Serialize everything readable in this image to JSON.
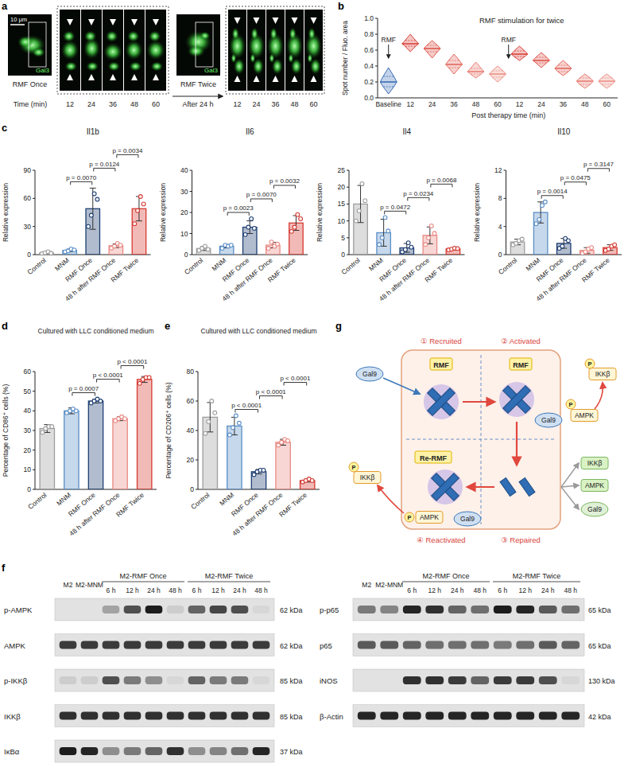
{
  "panel_letters": [
    "a",
    "b",
    "c",
    "d",
    "e",
    "f",
    "g"
  ],
  "panel_a": {
    "scale_bar": "10 μm",
    "stain": "Gal3",
    "conditions": [
      "RMF Once",
      "RMF Twice"
    ],
    "interval": "After 24 h",
    "axis_title": "Time (min)",
    "times": [
      12,
      24,
      36,
      48,
      60
    ]
  },
  "chart_data": [
    {
      "type": "violin",
      "title": "RMF stimulation for twice",
      "y_label": "Spot number / Fluo. area",
      "x_label": "Post therapy time (min)",
      "categories": [
        "Baseline",
        "12",
        "24",
        "36",
        "48",
        "60",
        "12",
        "24",
        "36",
        "48",
        "60"
      ],
      "min": [
        0.05,
        0.58,
        0.5,
        0.3,
        0.25,
        0.2,
        0.47,
        0.38,
        0.28,
        0.12,
        0.12
      ],
      "q1": [
        0.14,
        0.65,
        0.58,
        0.38,
        0.3,
        0.26,
        0.52,
        0.44,
        0.33,
        0.17,
        0.17
      ],
      "median": [
        0.2,
        0.68,
        0.62,
        0.42,
        0.33,
        0.3,
        0.55,
        0.47,
        0.37,
        0.21,
        0.21
      ],
      "q3": [
        0.27,
        0.72,
        0.66,
        0.47,
        0.37,
        0.34,
        0.59,
        0.51,
        0.41,
        0.25,
        0.25
      ],
      "max": [
        0.38,
        0.8,
        0.72,
        0.55,
        0.45,
        0.4,
        0.65,
        0.57,
        0.47,
        0.3,
        0.3
      ],
      "colors": [
        "#3b6db5",
        "#d9433b",
        "#de564c",
        "#e36a5f",
        "#e87f73",
        "#ec9287",
        "#d9433b",
        "#de564c",
        "#e36a5f",
        "#e87f73",
        "#ec9287"
      ],
      "annotations": [
        "RMF",
        "RMF"
      ],
      "ylim": [
        0,
        1
      ],
      "yticks": [
        {
          "value": 0,
          "label": "0.0"
        },
        {
          "value": 0.2,
          "label": "0.2"
        },
        {
          "value": 0.4,
          "label": "0.4"
        },
        {
          "value": 0.6,
          "label": "0.6"
        },
        {
          "value": 0.8,
          "label": "0.8"
        },
        {
          "value": 1,
          "label": "1.0"
        }
      ]
    },
    {
      "type": "bar",
      "title": "Il1b",
      "y_label": "Relative expression",
      "categories": [
        "Control",
        "MNM",
        "RMF Once",
        "48 h after RMF Once",
        "RMF Twice"
      ],
      "values": [
        1.9,
        4.5,
        49,
        9.5,
        49
      ],
      "errors": [
        0.9,
        1.3,
        22,
        2,
        13
      ],
      "points": [
        [
          1,
          2,
          3,
          1.5
        ],
        [
          3,
          4,
          6,
          5
        ],
        [
          30,
          42,
          65,
          59
        ],
        [
          7,
          9,
          12,
          10
        ],
        [
          33,
          47,
          62,
          54
        ]
      ],
      "colors": [
        "#9e9e9e",
        "#5b8fc7",
        "#1f3f73",
        "#e98a84",
        "#d63a32"
      ],
      "ylim": [
        0,
        90
      ],
      "yticks": [
        0,
        30,
        60,
        90
      ],
      "comparisons": [
        {
          "from": 1,
          "to": 2,
          "label": "p = 0.0070"
        },
        {
          "from": 2,
          "to": 3,
          "label": "p = 0.0124"
        },
        {
          "from": 3,
          "to": 4,
          "label": "p = 0.0034"
        }
      ]
    },
    {
      "type": "bar",
      "title": "Il6",
      "y_label": "Relative expression",
      "categories": [
        "Control",
        "MNM",
        "RMF Once",
        "48 h after RMF Once",
        "RMF Twice"
      ],
      "values": [
        2.9,
        4,
        13,
        4.5,
        15
      ],
      "errors": [
        0.9,
        0.8,
        3,
        1.3,
        3.5
      ],
      "points": [
        [
          2,
          3,
          4,
          2.5
        ],
        [
          3,
          4.5,
          4,
          4.5
        ],
        [
          9.5,
          13,
          17,
          12.5
        ],
        [
          3,
          6,
          4,
          5
        ],
        [
          11,
          13,
          19,
          17
        ]
      ],
      "colors": [
        "#9e9e9e",
        "#5b8fc7",
        "#1f3f73",
        "#e98a84",
        "#d63a32"
      ],
      "ylim": [
        0,
        40
      ],
      "yticks": [
        0,
        10,
        20,
        30,
        40
      ],
      "comparisons": [
        {
          "from": 1,
          "to": 2,
          "label": "p = 0.0023"
        },
        {
          "from": 2,
          "to": 3,
          "label": "p = 0.0070"
        },
        {
          "from": 3,
          "to": 4,
          "label": "p = 0.0032"
        }
      ]
    },
    {
      "type": "bar",
      "title": "Il4",
      "y_label": "Relative expression",
      "categories": [
        "Control",
        "MNM",
        "RMF Once",
        "48 h after RMF Once",
        "RMF Twice"
      ],
      "values": [
        15,
        6.5,
        2,
        5.7,
        1.7
      ],
      "errors": [
        5.5,
        4,
        1.3,
        2.5,
        0.3
      ],
      "points": [
        [
          10,
          13,
          21,
          16
        ],
        [
          3,
          5,
          11,
          7
        ],
        [
          0.8,
          1.5,
          3.5,
          2.2
        ],
        [
          3,
          5,
          8.5,
          6.3
        ],
        [
          1.4,
          1.6,
          1.9,
          1.8
        ]
      ],
      "colors": [
        "#9e9e9e",
        "#5b8fc7",
        "#1f3f73",
        "#e98a84",
        "#d63a32"
      ],
      "ylim": [
        0,
        25
      ],
      "yticks": [
        0,
        5,
        10,
        15,
        20,
        25
      ],
      "comparisons": [
        {
          "from": 1,
          "to": 2,
          "label": "p = 0.0472"
        },
        {
          "from": 2,
          "to": 3,
          "label": "p = 0.0234"
        },
        {
          "from": 3,
          "to": 4,
          "label": "p = 0.0068"
        }
      ]
    },
    {
      "type": "bar",
      "title": "Il10",
      "y_label": "Relative expression",
      "categories": [
        "Control",
        "MNM",
        "RMF Once",
        "48 h after RMF Once",
        "RMF Twice"
      ],
      "values": [
        1.8,
        6,
        1.6,
        0.6,
        1
      ],
      "errors": [
        0.4,
        1.5,
        0.7,
        0.4,
        0.4
      ],
      "points": [
        [
          1.4,
          1.6,
          2,
          2.2
        ],
        [
          4.4,
          5,
          7,
          7.5
        ],
        [
          0.9,
          1.2,
          2.3,
          2
        ],
        [
          0.2,
          0.4,
          0.8,
          1
        ],
        [
          0.6,
          0.8,
          1.2,
          1.4
        ]
      ],
      "colors": [
        "#9e9e9e",
        "#5b8fc7",
        "#1f3f73",
        "#e98a84",
        "#d63a32"
      ],
      "ylim": [
        0,
        12
      ],
      "yticks": [
        0,
        4,
        8,
        12
      ],
      "comparisons": [
        {
          "from": 1,
          "to": 2,
          "label": "p = 0.0014"
        },
        {
          "from": 2,
          "to": 3,
          "label": "p = 0.0475"
        },
        {
          "from": 3,
          "to": 4,
          "label": "p = 0.3147"
        }
      ]
    },
    {
      "type": "bar",
      "title": "Cultured with LLC conditioned medium",
      "y_label": "Percentage of CD86⁺ cells (%)",
      "categories": [
        "Control",
        "MNM",
        "RMF Once",
        "48 h after RMF Once",
        "RMF Twice"
      ],
      "values": [
        31,
        40,
        45,
        36,
        56
      ],
      "errors": [
        2,
        1.5,
        1,
        1,
        1.5
      ],
      "points": [
        [
          29,
          31,
          32,
          32
        ],
        [
          39,
          40,
          41,
          40
        ],
        [
          44,
          45,
          46,
          45
        ],
        [
          35,
          36,
          37,
          36
        ],
        [
          54,
          56,
          57,
          57
        ]
      ],
      "colors": [
        "#9e9e9e",
        "#5b8fc7",
        "#1f3f73",
        "#e98a84",
        "#d63a32"
      ],
      "ylim": [
        0,
        60
      ],
      "yticks": [
        0,
        10,
        20,
        30,
        40,
        50,
        60
      ],
      "comparisons": [
        {
          "from": 1,
          "to": 2,
          "label": "p = 0.0007"
        },
        {
          "from": 2,
          "to": 3,
          "label": "p < 0.0001"
        },
        {
          "from": 3,
          "to": 4,
          "label": "p < 0.0001"
        }
      ]
    },
    {
      "type": "bar",
      "title": "Cultured with LLC conditioned medium",
      "y_label": "Percentage of CD206⁺ cells (%)",
      "categories": [
        "Control",
        "MNM",
        "RMF Once",
        "48 h after RMF Once",
        "RMF Twice"
      ],
      "values": [
        49,
        43,
        12,
        32,
        6
      ],
      "errors": [
        10,
        6,
        1.5,
        2,
        1
      ],
      "points": [
        [
          38,
          46,
          60,
          52
        ],
        [
          37,
          42,
          50,
          45
        ],
        [
          10,
          12,
          13,
          13
        ],
        [
          30,
          32,
          34,
          33
        ],
        [
          5,
          6,
          7,
          6
        ]
      ],
      "colors": [
        "#9e9e9e",
        "#5b8fc7",
        "#1f3f73",
        "#e98a84",
        "#d63a32"
      ],
      "ylim": [
        0,
        80
      ],
      "yticks": [
        0,
        20,
        40,
        60,
        80
      ],
      "comparisons": [
        {
          "from": 1,
          "to": 2,
          "label": "p < 0.0001"
        },
        {
          "from": 2,
          "to": 3,
          "label": "p < 0.0001"
        },
        {
          "from": 3,
          "to": 4,
          "label": "p < 0.0001"
        }
      ]
    }
  ],
  "panel_f": {
    "lanes": [
      "M2",
      "M2-MNM",
      "6 h",
      "12 h",
      "24 h",
      "48 h",
      "6 h",
      "12 h",
      "24 h",
      "48 h"
    ],
    "groups": [
      {
        "label": "M2-RMF Once",
        "start": 2,
        "end": 5
      },
      {
        "label": "M2-RMF Twice",
        "start": 6,
        "end": 9
      }
    ],
    "blots": [
      [
        {
          "protein": "p-AMPK",
          "size": "62 kDa",
          "intensity": [
            0,
            0,
            0.3,
            0.7,
            0.95,
            0.1,
            0.6,
            0.75,
            0.7,
            0.05
          ]
        },
        {
          "protein": "AMPK",
          "size": "62 kDa",
          "intensity": [
            0.8,
            0.8,
            0.8,
            0.8,
            0.8,
            0.8,
            0.8,
            0.8,
            0.8,
            0.8
          ]
        },
        {
          "protein": "p-IKKβ",
          "size": "85 kDa",
          "intensity": [
            0.1,
            0.1,
            0.7,
            0.5,
            0.4,
            0.05,
            0.6,
            0.5,
            0.5,
            0.05
          ]
        },
        {
          "protein": "IKKβ",
          "size": "85 kDa",
          "intensity": [
            0.85,
            0.85,
            0.85,
            0.85,
            0.85,
            0.85,
            0.85,
            0.85,
            0.85,
            0.85
          ]
        },
        {
          "protein": "IκBα",
          "size": "37 kDa",
          "intensity": [
            0.95,
            0.9,
            0.4,
            0.5,
            0.6,
            0.85,
            0.4,
            0.45,
            0.55,
            0.9
          ]
        }
      ],
      [
        {
          "protein": "p-p65",
          "size": "65 kDa",
          "intensity": [
            0.5,
            0.45,
            0.9,
            0.85,
            0.6,
            0.55,
            0.95,
            0.9,
            0.65,
            0.55
          ]
        },
        {
          "protein": "p65",
          "size": "65 kDa",
          "intensity": [
            0.65,
            0.65,
            0.6,
            0.55,
            0.55,
            0.55,
            0.5,
            0.55,
            0.65,
            0.6
          ]
        },
        {
          "protein": "iNOS",
          "size": "130 kDa",
          "intensity": [
            0,
            0,
            0.85,
            0.85,
            0.8,
            0.6,
            0.8,
            0.8,
            0.7,
            0.05
          ]
        },
        {
          "protein": "β-Actin",
          "size": "42 kDa",
          "intensity": [
            0.9,
            0.9,
            0.9,
            0.9,
            0.9,
            0.9,
            0.9,
            0.9,
            0.9,
            0.9
          ]
        }
      ]
    ]
  },
  "panel_g": {
    "steps": [
      "① Recruited",
      "② Activated",
      "③ Repaired",
      "④ Reactivated"
    ],
    "stimuli": [
      "RMF",
      "RMF",
      "Re-RMF"
    ],
    "gal9": "Gal9",
    "ampk": "AMPK",
    "ikkb": "IKKβ",
    "phospho": "P"
  }
}
